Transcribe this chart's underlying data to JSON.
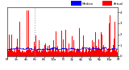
{
  "bg_color": "#ffffff",
  "plot_bg_color": "#ffffff",
  "bar_color": "#ff0000",
  "median_color": "#0000ff",
  "ylim": [
    0,
    4.5
  ],
  "xlim": [
    0,
    1440
  ],
  "dashed_line_x": 360,
  "n_points": 1440,
  "legend_median_color": "#0000ff",
  "legend_actual_color": "#ff0000",
  "yticks": [
    0,
    1,
    2,
    3,
    4
  ],
  "ytick_labels": [
    "0",
    "1",
    "2",
    "3",
    "4"
  ]
}
